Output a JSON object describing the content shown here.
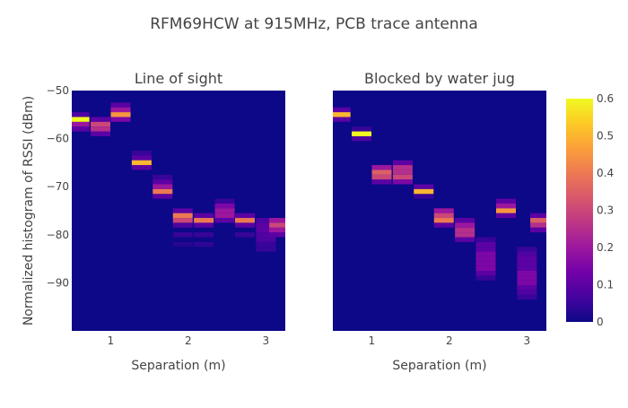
{
  "chart_data": {
    "type": "heatmap",
    "title": "RFM69HCW at 915MHz, PCB trace antenna",
    "ylabel": "Normalized histogram of RSSI (dBm)",
    "y_range": [
      -100,
      -50
    ],
    "colorscale": [
      "#0d0887",
      "#46039f",
      "#7201a8",
      "#9c179e",
      "#bd3786",
      "#d8576b",
      "#ed7953",
      "#fb9f3a",
      "#fdca26",
      "#f0f921"
    ],
    "colorbar": {
      "min": 0,
      "max": 0.6,
      "ticks": [
        "0",
        "0.1",
        "0.2",
        "0.3",
        "0.4",
        "0.5",
        "0.6"
      ]
    },
    "panels": [
      {
        "title": "Line of sight",
        "xlabel": "Separation (m)",
        "x_range": [
          0.5,
          3.25
        ],
        "x_ticks": [
          "1",
          "2",
          "3"
        ],
        "y_ticks": [
          "−50",
          "−60",
          "−70",
          "−80",
          "−90"
        ],
        "columns": [
          {
            "x": 0.6,
            "peaks": [
              [
                -56,
                0.6
              ],
              [
                -57,
                0.2
              ],
              [
                -58,
                0.1
              ],
              [
                -55,
                0.08
              ]
            ]
          },
          {
            "x": 0.87,
            "peaks": [
              [
                -57,
                0.3
              ],
              [
                -58,
                0.25
              ],
              [
                -56,
                0.1
              ],
              [
                -59,
                0.1
              ]
            ]
          },
          {
            "x": 1.13,
            "peaks": [
              [
                -55,
                0.45
              ],
              [
                -54,
                0.2
              ],
              [
                -56,
                0.15
              ],
              [
                -53,
                0.1
              ]
            ]
          },
          {
            "x": 1.4,
            "peaks": [
              [
                -65,
                0.5
              ],
              [
                -64,
                0.1
              ],
              [
                -66,
                0.1
              ],
              [
                -63,
                0.05
              ]
            ]
          },
          {
            "x": 1.67,
            "peaks": [
              [
                -71,
                0.4
              ],
              [
                -70,
                0.2
              ],
              [
                -69,
                0.1
              ],
              [
                -72,
                0.1
              ],
              [
                -68,
                0.05
              ]
            ]
          },
          {
            "x": 1.93,
            "peaks": [
              [
                -76,
                0.4
              ],
              [
                -77,
                0.3
              ],
              [
                -75,
                0.1
              ],
              [
                -78,
                0.08
              ],
              [
                -80,
                0.05
              ],
              [
                -82,
                0.03
              ]
            ]
          },
          {
            "x": 2.2,
            "peaks": [
              [
                -77,
                0.4
              ],
              [
                -76,
                0.1
              ],
              [
                -78,
                0.1
              ],
              [
                -80,
                0.05
              ],
              [
                -82,
                0.04
              ]
            ]
          },
          {
            "x": 2.47,
            "peaks": [
              [
                -75,
                0.2
              ],
              [
                -76,
                0.2
              ],
              [
                -74,
                0.15
              ],
              [
                -77,
                0.1
              ],
              [
                -73,
                0.05
              ]
            ]
          },
          {
            "x": 2.73,
            "peaks": [
              [
                -77,
                0.4
              ],
              [
                -76,
                0.1
              ],
              [
                -78,
                0.1
              ],
              [
                -80,
                0.05
              ]
            ]
          },
          {
            "x": 3.0,
            "peaks": [
              [
                -78,
                0.1
              ],
              [
                -79,
                0.1
              ],
              [
                -80,
                0.08
              ],
              [
                -81,
                0.08
              ],
              [
                -77,
                0.08
              ],
              [
                -82,
                0.05
              ],
              [
                -83,
                0.05
              ]
            ]
          },
          {
            "x": 3.17,
            "peaks": [
              [
                -78,
                0.3
              ],
              [
                -77,
                0.2
              ],
              [
                -79,
                0.2
              ],
              [
                -80,
                0.1
              ]
            ]
          }
        ]
      },
      {
        "title": "Blocked by water jug",
        "xlabel": "Separation (m)",
        "x_range": [
          0.5,
          3.25
        ],
        "x_ticks": [
          "1",
          "2",
          "3"
        ],
        "y_ticks": [],
        "columns": [
          {
            "x": 0.6,
            "peaks": [
              [
                -55,
                0.5
              ],
              [
                -54,
                0.1
              ],
              [
                -56,
                0.1
              ]
            ]
          },
          {
            "x": 0.87,
            "peaks": [
              [
                -59,
                0.6
              ],
              [
                -60,
                0.08
              ],
              [
                -58,
                0.05
              ]
            ]
          },
          {
            "x": 1.13,
            "peaks": [
              [
                -67,
                0.35
              ],
              [
                -68,
                0.3
              ],
              [
                -66,
                0.2
              ],
              [
                -69,
                0.1
              ]
            ]
          },
          {
            "x": 1.4,
            "peaks": [
              [
                -67,
                0.25
              ],
              [
                -68,
                0.3
              ],
              [
                -66,
                0.25
              ],
              [
                -69,
                0.15
              ],
              [
                -65,
                0.1
              ]
            ]
          },
          {
            "x": 1.67,
            "peaks": [
              [
                -71,
                0.5
              ],
              [
                -70,
                0.1
              ],
              [
                -72,
                0.05
              ]
            ]
          },
          {
            "x": 1.93,
            "peaks": [
              [
                -76,
                0.3
              ],
              [
                -77,
                0.4
              ],
              [
                -75,
                0.2
              ],
              [
                -78,
                0.1
              ]
            ]
          },
          {
            "x": 2.2,
            "peaks": [
              [
                -79,
                0.25
              ],
              [
                -80,
                0.25
              ],
              [
                -78,
                0.2
              ],
              [
                -81,
                0.1
              ],
              [
                -77,
                0.1
              ]
            ]
          },
          {
            "x": 2.47,
            "peaks": [
              [
                -84,
                0.15
              ],
              [
                -85,
                0.15
              ],
              [
                -86,
                0.15
              ],
              [
                -87,
                0.15
              ],
              [
                -83,
                0.1
              ],
              [
                -88,
                0.1
              ],
              [
                -82,
                0.1
              ],
              [
                -89,
                0.05
              ],
              [
                -81,
                0.05
              ]
            ]
          },
          {
            "x": 2.73,
            "peaks": [
              [
                -75,
                0.45
              ],
              [
                -74,
                0.2
              ],
              [
                -76,
                0.1
              ],
              [
                -73,
                0.1
              ]
            ]
          },
          {
            "x": 3.0,
            "peaks": [
              [
                -88,
                0.15
              ],
              [
                -89,
                0.15
              ],
              [
                -90,
                0.15
              ],
              [
                -87,
                0.1
              ],
              [
                -91,
                0.1
              ],
              [
                -86,
                0.1
              ],
              [
                -85,
                0.1
              ],
              [
                -92,
                0.08
              ],
              [
                -84,
                0.08
              ],
              [
                -93,
                0.05
              ],
              [
                -83,
                0.05
              ]
            ]
          },
          {
            "x": 3.17,
            "peaks": [
              [
                -77,
                0.35
              ],
              [
                -78,
                0.25
              ],
              [
                -76,
                0.1
              ],
              [
                -79,
                0.1
              ]
            ]
          }
        ]
      }
    ]
  }
}
